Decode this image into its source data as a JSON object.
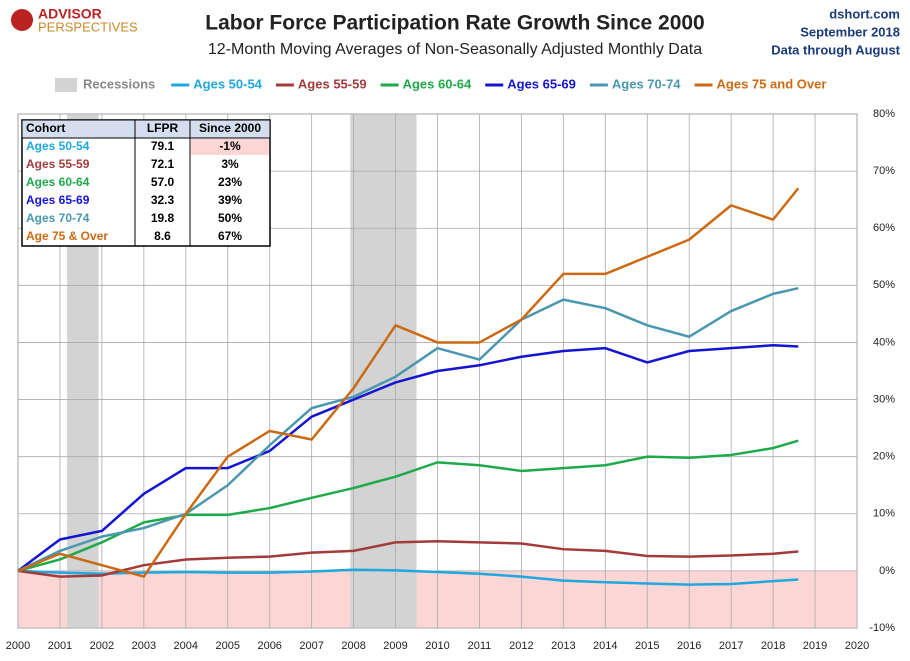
{
  "chart_data": {
    "type": "line",
    "logo": {
      "line1": "ADVISOR",
      "line2": "PERSPECTIVES"
    },
    "title": "Labor Force Participation Rate Growth Since 2000",
    "subtitle": "12-Month Moving Averages of Non-Seasonally Adjusted Monthly Data",
    "source": "dshort.com",
    "date": "September 2018",
    "note": "Data through August",
    "recessions": {
      "name": "Recessions",
      "color": "#d3d3d3",
      "ranges": [
        [
          2001.17,
          2001.92
        ],
        [
          2007.92,
          2009.5
        ]
      ]
    },
    "negative_shade": "#fcd5d5",
    "x": [
      2000,
      2001,
      2002,
      2003,
      2004,
      2005,
      2006,
      2007,
      2008,
      2009,
      2010,
      2011,
      2012,
      2013,
      2014,
      2015,
      2016,
      2017,
      2018,
      2018.6
    ],
    "series": [
      {
        "name": "Ages 50-54",
        "color": "#1fa7e0",
        "values": [
          0,
          -0.3,
          -0.5,
          -0.3,
          -0.2,
          -0.3,
          -0.3,
          -0.1,
          0.2,
          0.1,
          -0.2,
          -0.5,
          -1,
          -1.7,
          -2,
          -2.2,
          -2.4,
          -2.3,
          -1.8,
          -1.5
        ]
      },
      {
        "name": "Ages 55-59",
        "color": "#a33b3b",
        "values": [
          0,
          -1,
          -0.8,
          1,
          2,
          2.3,
          2.5,
          3.2,
          3.5,
          5,
          5.2,
          5,
          4.8,
          3.8,
          3.5,
          2.6,
          2.5,
          2.7,
          3.0,
          3.4
        ]
      },
      {
        "name": "Ages 60-64",
        "color": "#1faa4a",
        "values": [
          0,
          2,
          5,
          8.5,
          9.8,
          9.8,
          11,
          12.8,
          14.5,
          16.5,
          19,
          18.5,
          17.5,
          18,
          18.5,
          20,
          19.8,
          20.3,
          21.5,
          22.8
        ]
      },
      {
        "name": "Ages 65-69",
        "color": "#1414d2",
        "values": [
          0,
          5.5,
          7,
          13.5,
          18,
          18,
          21,
          27,
          30,
          33,
          35,
          36,
          37.5,
          38.5,
          39,
          36.5,
          38.5,
          39,
          39.5,
          39.3
        ]
      },
      {
        "name": "Ages 70-74",
        "color": "#4a98b0",
        "values": [
          0,
          3.5,
          6,
          7.5,
          10,
          15,
          22,
          28.5,
          30.5,
          34,
          39,
          37,
          44,
          47.5,
          46,
          43,
          41,
          45.5,
          48.5,
          49.5
        ]
      },
      {
        "name": "Ages 75 and Over",
        "color": "#cc6a14",
        "values": [
          0,
          3,
          1,
          -1,
          10,
          20,
          24.5,
          23,
          32,
          43,
          40,
          40,
          44,
          52,
          52,
          55,
          58,
          64,
          61.5,
          67
        ]
      }
    ],
    "xlim": [
      2000,
      2020
    ],
    "xticks": [
      2000,
      2001,
      2002,
      2003,
      2004,
      2005,
      2006,
      2007,
      2008,
      2009,
      2010,
      2011,
      2012,
      2013,
      2014,
      2015,
      2016,
      2017,
      2018,
      2019,
      2020
    ],
    "ylim": [
      -10,
      80
    ],
    "yticks": [
      {
        "value": -10,
        "label": "-10%"
      },
      {
        "value": 0,
        "label": "0%"
      },
      {
        "value": 10,
        "label": "10%"
      },
      {
        "value": 20,
        "label": "20%"
      },
      {
        "value": 30,
        "label": "30%"
      },
      {
        "value": 40,
        "label": "40%"
      },
      {
        "value": 50,
        "label": "50%"
      },
      {
        "value": 60,
        "label": "60%"
      },
      {
        "value": 70,
        "label": "70%"
      },
      {
        "value": 80,
        "label": "80%"
      }
    ],
    "grid": true,
    "table": {
      "columns": [
        "Cohort",
        "LFPR",
        "Since 2000"
      ],
      "rows": [
        [
          "Ages 50-54",
          "79.1",
          "-1%"
        ],
        [
          "Ages 55-59",
          "72.1",
          "3%"
        ],
        [
          "Ages 60-64",
          "57.0",
          "23%"
        ],
        [
          "Ages 65-69",
          "32.3",
          "39%"
        ],
        [
          "Ages 70-74",
          "19.8",
          "50%"
        ],
        [
          "Age 75 & Over",
          "8.6",
          "67%"
        ]
      ]
    }
  }
}
